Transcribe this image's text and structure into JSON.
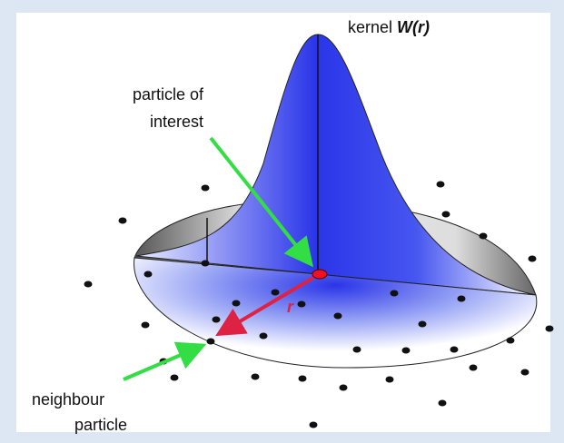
{
  "kernel_label": {
    "text": "kernel",
    "symbol": "W(r)"
  },
  "particle_of_interest": {
    "lines": [
      "particle of",
      "interest"
    ]
  },
  "neighbour_particle": {
    "lines": [
      "neighbour",
      "particle"
    ]
  },
  "distance_symbol": "r"
}
